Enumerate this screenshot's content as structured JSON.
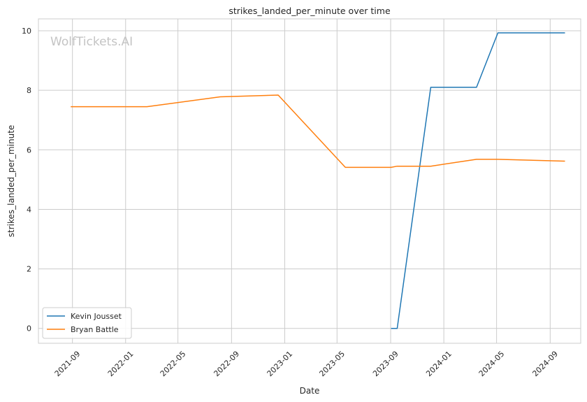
{
  "chart_data": {
    "type": "line",
    "title": "strikes_landed_per_minute over time",
    "xlabel": "Date",
    "ylabel": "strikes_landed_per_minute",
    "watermark": "WolfTickets.AI",
    "xlim": [
      "2021-06-15",
      "2024-11-10"
    ],
    "ylim": [
      -0.5,
      10.4
    ],
    "x_ticks": [
      "2021-09",
      "2022-01",
      "2022-05",
      "2022-09",
      "2023-01",
      "2023-05",
      "2023-09",
      "2024-01",
      "2024-05",
      "2024-09"
    ],
    "y_ticks": [
      0,
      2,
      4,
      6,
      8,
      10
    ],
    "grid": true,
    "legend_position": "lower-left",
    "series": [
      {
        "name": "Kevin Jousset",
        "color": "#1f77b4",
        "points": [
          {
            "x": "2023-09-02",
            "y": 0.0
          },
          {
            "x": "2023-09-16",
            "y": 0.0
          },
          {
            "x": "2023-12-02",
            "y": 8.1
          },
          {
            "x": "2024-03-16",
            "y": 8.1
          },
          {
            "x": "2024-05-04",
            "y": 9.93
          },
          {
            "x": "2024-10-05",
            "y": 9.93
          }
        ]
      },
      {
        "name": "Bryan Battle",
        "color": "#ff7f0e",
        "points": [
          {
            "x": "2021-08-28",
            "y": 7.45
          },
          {
            "x": "2022-02-19",
            "y": 7.45
          },
          {
            "x": "2022-08-06",
            "y": 7.78
          },
          {
            "x": "2022-12-17",
            "y": 7.84
          },
          {
            "x": "2023-05-20",
            "y": 5.41
          },
          {
            "x": "2023-09-02",
            "y": 5.41
          },
          {
            "x": "2023-09-16",
            "y": 5.45
          },
          {
            "x": "2023-12-02",
            "y": 5.45
          },
          {
            "x": "2024-03-16",
            "y": 5.68
          },
          {
            "x": "2024-05-04",
            "y": 5.68
          },
          {
            "x": "2024-10-05",
            "y": 5.62
          }
        ]
      }
    ]
  }
}
